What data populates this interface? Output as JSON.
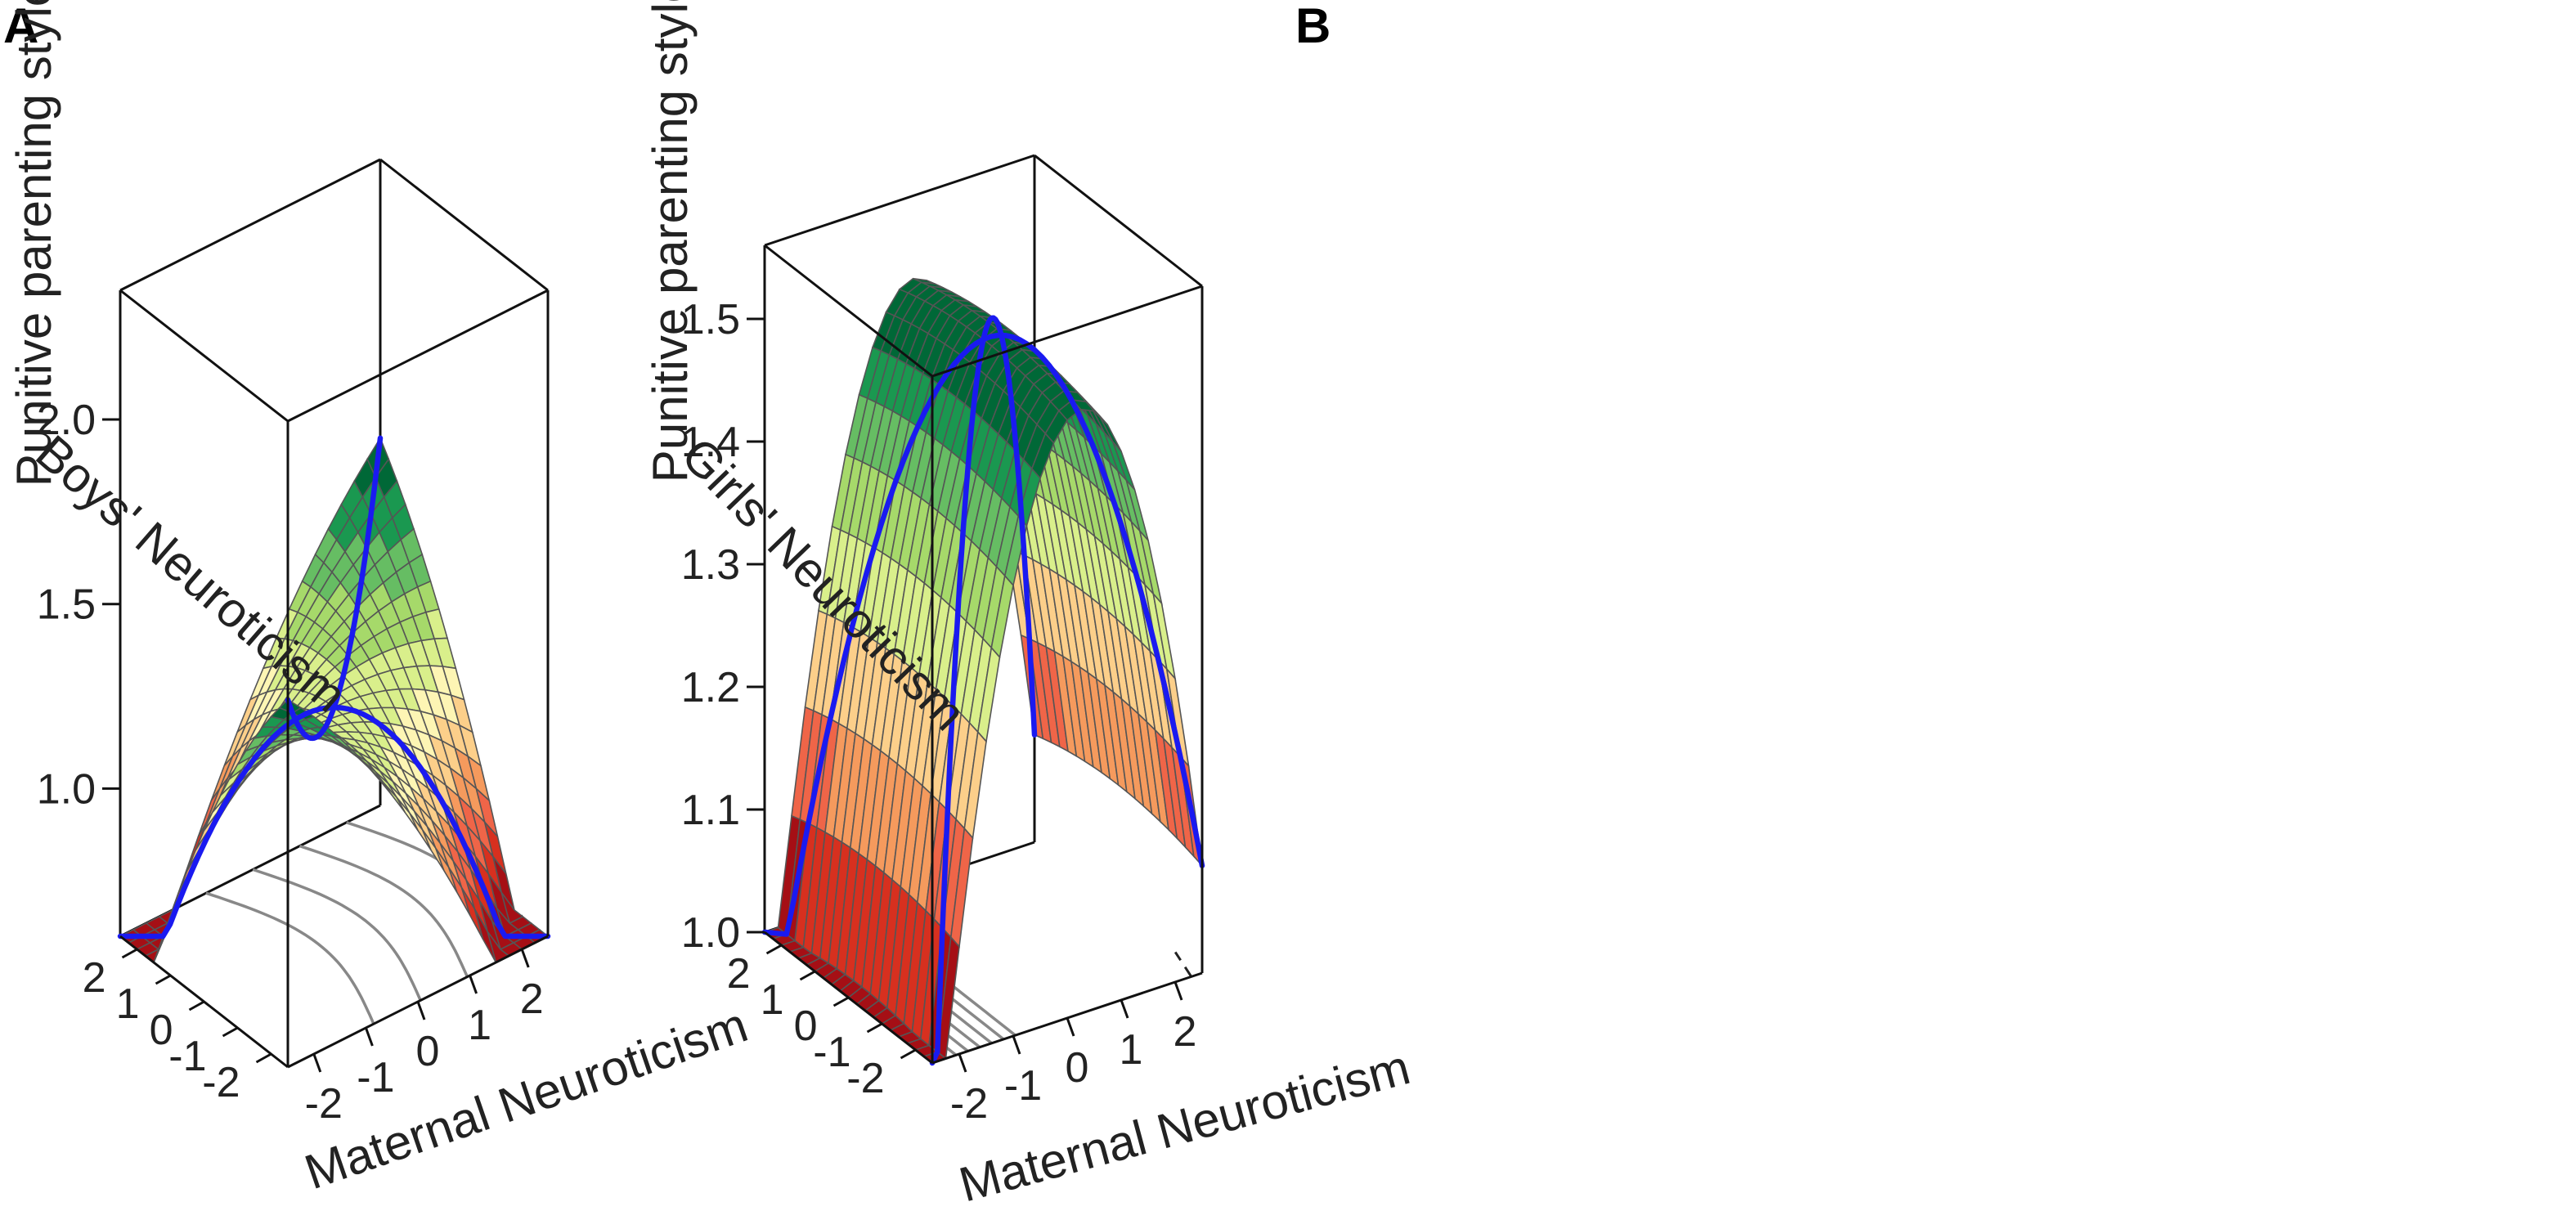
{
  "chart_data": [
    {
      "panel": "A",
      "type": "surface3d",
      "zlabel": "Punitive parenting style",
      "xlabel": "Boys' Neuroticism",
      "ylabel": "Maternal Neuroticism",
      "x_ticks": [
        "2",
        "1",
        "0",
        "-1",
        "-2"
      ],
      "y_ticks": [
        "-2",
        "-1",
        "0",
        "1",
        "2"
      ],
      "z_ticks": [
        "1.0",
        "1.5",
        "2.0"
      ],
      "z_tick_values": [
        1.0,
        1.5,
        2.0
      ],
      "xlim": [
        -2.5,
        2.5
      ],
      "ylim": [
        -2.5,
        2.5
      ],
      "zlim": [
        0.6,
        2.35
      ],
      "surface": {
        "intercept": 1.22,
        "x": 0.0,
        "y": 0.0,
        "xx": -0.025,
        "yy": -0.025,
        "xy": 0.11
      },
      "lines": [
        {
          "name": "line of congruence",
          "from": [
            -2.5,
            -2.5
          ],
          "to": [
            2.5,
            2.5
          ]
        },
        {
          "name": "line of incongruence",
          "from": [
            2.5,
            -2.5
          ],
          "to": [
            -2.5,
            2.5
          ]
        }
      ],
      "colors": [
        "#a50f15",
        "#d7301f",
        "#ef6548",
        "#f59a5d",
        "#fccf8a",
        "#fdf5b4",
        "#d9ef8b",
        "#a6d96a",
        "#66bd63",
        "#1a9850",
        "#006837"
      ]
    },
    {
      "panel": "B",
      "type": "surface3d",
      "zlabel": "Punitive parenting style",
      "xlabel": "Girls' Neuroticism",
      "ylabel": "Maternal Neuroticism",
      "x_ticks": [
        "2",
        "1",
        "0",
        "-1",
        "-2"
      ],
      "y_ticks": [
        "-2",
        "-1",
        "0",
        "1",
        "2"
      ],
      "z_ticks": [
        "1.0",
        "1.1",
        "1.2",
        "1.3",
        "1.4",
        "1.5"
      ],
      "z_tick_values": [
        1.0,
        1.1,
        1.2,
        1.3,
        1.4,
        1.5
      ],
      "xlim": [
        -2.5,
        2.5
      ],
      "ylim": [
        -2.5,
        2.5
      ],
      "zlim": [
        1.0,
        1.56
      ],
      "surface": {
        "intercept": 1.5,
        "x": 0.0,
        "y": 0.04,
        "xx": -0.002,
        "yy": -0.08,
        "xy": 0.0
      },
      "lines": [
        {
          "name": "line of congruence",
          "from": [
            -2.5,
            -2.5
          ],
          "to": [
            2.5,
            2.5
          ]
        },
        {
          "name": "line of incongruence",
          "from": [
            2.5,
            -2.5
          ],
          "to": [
            -2.5,
            2.5
          ]
        }
      ],
      "colors": [
        "#a50f15",
        "#d7301f",
        "#ef6548",
        "#f59a5d",
        "#fccf8a",
        "#fdf5b4",
        "#d9ef8b",
        "#a6d96a",
        "#66bd63",
        "#1a9850",
        "#006837"
      ]
    }
  ]
}
